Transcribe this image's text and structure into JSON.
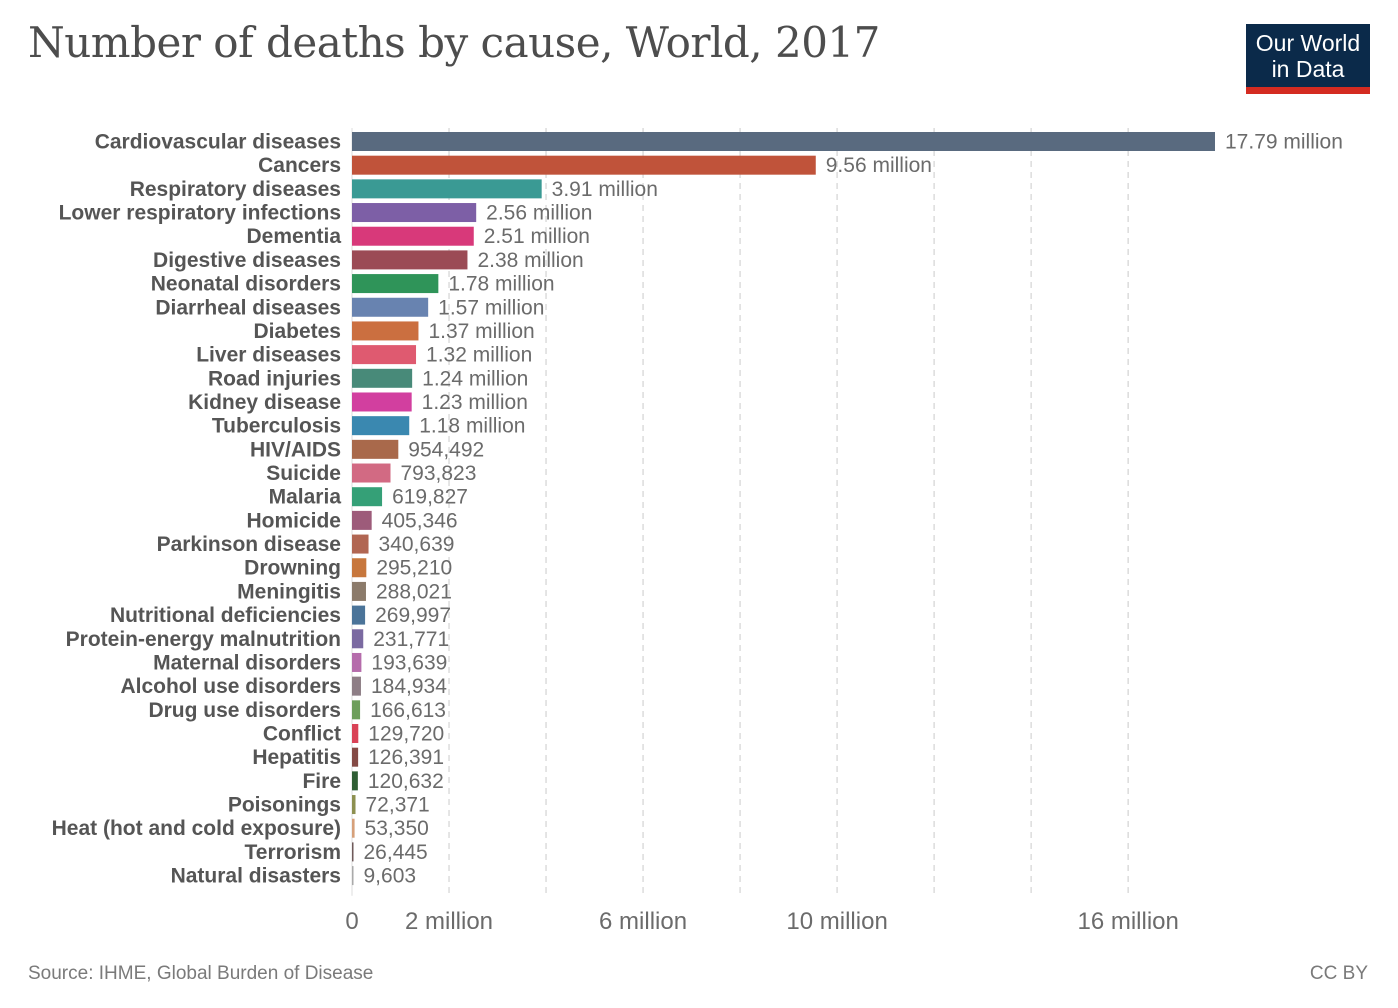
{
  "title": "Number of deaths by cause, World, 2017",
  "logo": {
    "line1": "Our World",
    "line2": "in Data"
  },
  "source": "Source: IHME, Global Burden of Disease",
  "license": "CC BY",
  "chart_data": {
    "type": "bar",
    "orientation": "horizontal",
    "title": "Number of deaths by cause, World, 2017",
    "xlabel": "",
    "ylabel": "",
    "xlim": [
      0,
      17790000
    ],
    "x_ticks": [
      {
        "value": 0,
        "label": "0"
      },
      {
        "value": 2000000,
        "label": "2 million"
      },
      {
        "value": 6000000,
        "label": "6 million"
      },
      {
        "value": 10000000,
        "label": "10 million"
      },
      {
        "value": 16000000,
        "label": "16 million"
      }
    ],
    "gridlines": [
      2000000,
      4000000,
      6000000,
      8000000,
      10000000,
      12000000,
      14000000,
      16000000
    ],
    "grid": true,
    "legend": "none",
    "categories": [
      "Cardiovascular diseases",
      "Cancers",
      "Respiratory diseases",
      "Lower respiratory infections",
      "Dementia",
      "Digestive diseases",
      "Neonatal disorders",
      "Diarrheal diseases",
      "Diabetes",
      "Liver diseases",
      "Road injuries",
      "Kidney disease",
      "Tuberculosis",
      "HIV/AIDS",
      "Suicide",
      "Malaria",
      "Homicide",
      "Parkinson disease",
      "Drowning",
      "Meningitis",
      "Nutritional deficiencies",
      "Protein-energy malnutrition",
      "Maternal disorders",
      "Alcohol use disorders",
      "Drug use disorders",
      "Conflict",
      "Hepatitis",
      "Fire",
      "Poisonings",
      "Heat (hot and cold exposure)",
      "Terrorism",
      "Natural disasters"
    ],
    "values": [
      17790000,
      9560000,
      3910000,
      2560000,
      2510000,
      2380000,
      1780000,
      1570000,
      1370000,
      1320000,
      1240000,
      1230000,
      1180000,
      954492,
      793823,
      619827,
      405346,
      340639,
      295210,
      288021,
      269997,
      231771,
      193639,
      184934,
      166613,
      129720,
      126391,
      120632,
      72371,
      53350,
      26445,
      9603
    ],
    "value_labels": [
      "17.79 million",
      "9.56 million",
      "3.91 million",
      "2.56 million",
      "2.51 million",
      "2.38 million",
      "1.78 million",
      "1.57 million",
      "1.37 million",
      "1.32 million",
      "1.24 million",
      "1.23 million",
      "1.18 million",
      "954,492",
      "793,823",
      "619,827",
      "405,346",
      "340,639",
      "295,210",
      "288,021",
      "269,997",
      "231,771",
      "193,639",
      "184,934",
      "166,613",
      "129,720",
      "126,391",
      "120,632",
      "72,371",
      "53,350",
      "26,445",
      "9,603"
    ],
    "colors": [
      "#596a7f",
      "#c0533a",
      "#3a9a94",
      "#7d5fa6",
      "#d8397a",
      "#9b4b55",
      "#2f9459",
      "#6883b0",
      "#cb6f40",
      "#df5a70",
      "#488a79",
      "#d23f9f",
      "#3a88b0",
      "#a9694b",
      "#d26a83",
      "#35a077",
      "#9d5b7a",
      "#b16652",
      "#c7773d",
      "#8c7b6b",
      "#4b7499",
      "#7b6aa1",
      "#b56cab",
      "#8e7e86",
      "#6e9e5c",
      "#d94256",
      "#844a45",
      "#2f5e34",
      "#8d9050",
      "#d6a07a",
      "#6f5a5a",
      "#aaaaaa"
    ]
  }
}
